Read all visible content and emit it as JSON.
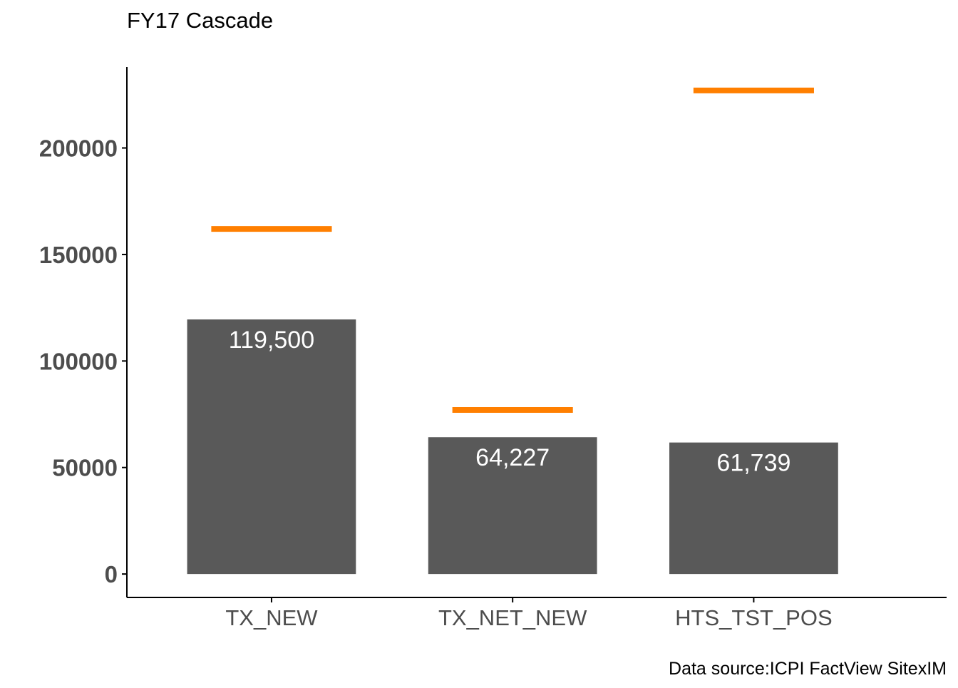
{
  "chart_data": {
    "type": "bar",
    "title": "FY17 Cascade",
    "caption": "Data source:ICPI FactView SitexIM",
    "categories": [
      "TX_NEW",
      "TX_NET_NEW",
      "HTS_TST_POS"
    ],
    "series": [
      {
        "type": "bar",
        "values": [
          119500,
          64227,
          61739
        ],
        "data_labels": [
          "119,500",
          "64,227",
          "61,739"
        ],
        "color": "#595959"
      },
      {
        "type": "target-line",
        "values": [
          162000,
          77000,
          227000
        ],
        "color": "#ff7f00"
      }
    ],
    "yticks": [
      0,
      50000,
      100000,
      150000,
      200000
    ],
    "ytick_labels": [
      "0",
      "50000",
      "100000",
      "150000",
      "200000"
    ],
    "ylim": [
      -11000,
      238000
    ],
    "xlabel": "",
    "ylabel": "",
    "grid": false,
    "legend": "none",
    "axis_color": "#000000",
    "tick_label_color": "#4d4d4d"
  }
}
